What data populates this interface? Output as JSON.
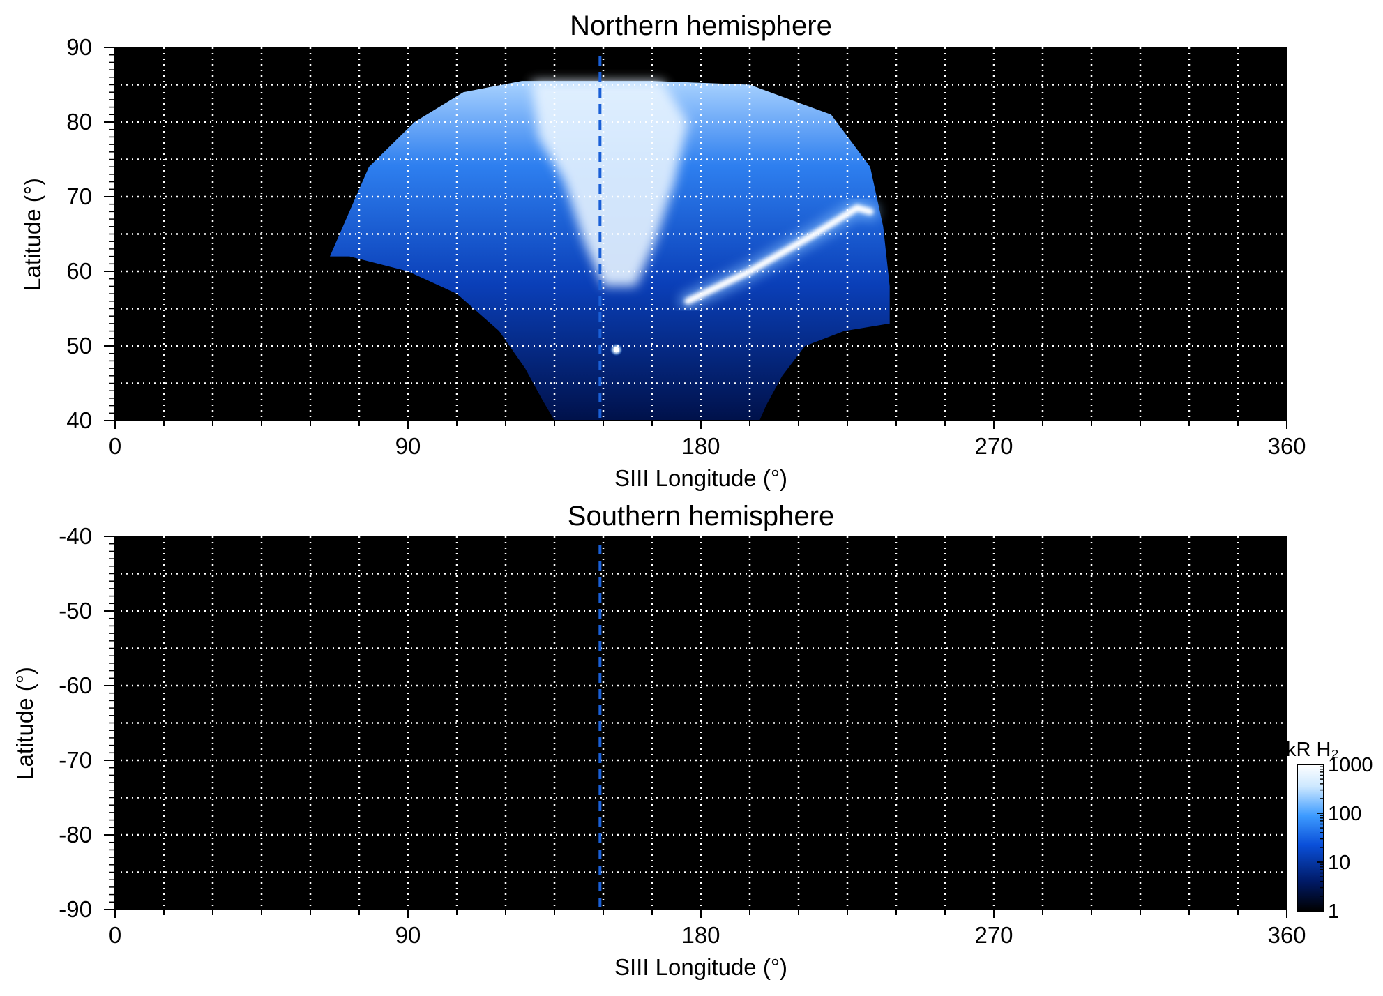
{
  "chart_data": [
    {
      "type": "heatmap",
      "title": "Northern hemisphere",
      "xlabel": "SIII Longitude (°)",
      "ylabel": "Latitude (°)",
      "xlim": [
        0,
        360
      ],
      "ylim": [
        40,
        90
      ],
      "x_ticks": [
        "0",
        "90",
        "180",
        "270",
        "360"
      ],
      "y_ticks": [
        "40",
        "50",
        "60",
        "70",
        "80",
        "90"
      ],
      "x_tick_values": [
        0,
        90,
        180,
        270,
        360
      ],
      "y_tick_values": [
        40,
        50,
        60,
        70,
        80,
        90
      ],
      "grid_x_step": 15,
      "grid_y_step": 5,
      "grid": true,
      "background": "#000000",
      "reference_line_longitude": 149,
      "reference_line_color": "#1a5fd6",
      "emission_region": {
        "lon_range": [
          66,
          238
        ],
        "lat_range": [
          40,
          86
        ],
        "boundary": [
          [
            66,
            62
          ],
          [
            78,
            74
          ],
          [
            92,
            80
          ],
          [
            107,
            84
          ],
          [
            125,
            85.5
          ],
          [
            145,
            85.5
          ],
          [
            165,
            85.5
          ],
          [
            195,
            85
          ],
          [
            220,
            81
          ],
          [
            232,
            74
          ],
          [
            236,
            66
          ],
          [
            238,
            58
          ],
          [
            238,
            53
          ],
          [
            224,
            52
          ],
          [
            212,
            50
          ],
          [
            205,
            46
          ],
          [
            200,
            42
          ],
          [
            198,
            40
          ],
          [
            135,
            40
          ],
          [
            131,
            43
          ],
          [
            126,
            47
          ],
          [
            118,
            52
          ],
          [
            105,
            57
          ],
          [
            90,
            60
          ],
          [
            72,
            62
          ]
        ]
      },
      "features": [
        {
          "name": "main oval arc",
          "points": [
            [
              176,
              56
            ],
            [
              195,
              60
            ],
            [
              215,
              65
            ],
            [
              228,
              68.5
            ],
            [
              232,
              68
            ]
          ]
        },
        {
          "name": "bright polar region",
          "points": [
            [
              140,
              85
            ],
            [
              150,
              80
            ],
            [
              155,
              72
            ],
            [
              155,
              62
            ]
          ]
        },
        {
          "name": "bright spot",
          "points": [
            [
              154,
              49.5
            ]
          ]
        }
      ]
    },
    {
      "type": "heatmap",
      "title": "Southern hemisphere",
      "xlabel": "SIII Longitude (°)",
      "ylabel": "Latitude (°)",
      "xlim": [
        0,
        360
      ],
      "ylim": [
        -90,
        -40
      ],
      "x_ticks": [
        "0",
        "90",
        "180",
        "270",
        "360"
      ],
      "y_ticks": [
        "-40",
        "-50",
        "-60",
        "-70",
        "-80",
        "-90"
      ],
      "x_tick_values": [
        0,
        90,
        180,
        270,
        360
      ],
      "y_tick_values": [
        -40,
        -50,
        -60,
        -70,
        -80,
        -90
      ],
      "grid_x_step": 15,
      "grid_y_step": 5,
      "grid": true,
      "background": "#000000",
      "reference_line_longitude": 149,
      "reference_line_color": "#1a5fd6"
    }
  ],
  "colorbar": {
    "label": "kR H₂",
    "scale": "log",
    "range": [
      1,
      1000
    ],
    "ticks": [
      "1",
      "10",
      "100",
      "1000"
    ],
    "tick_values": [
      1,
      10,
      100,
      1000
    ],
    "colors": [
      "#000000",
      "#001a66",
      "#0a4fd9",
      "#3d9bff",
      "#cde8ff",
      "#ffffff"
    ]
  }
}
